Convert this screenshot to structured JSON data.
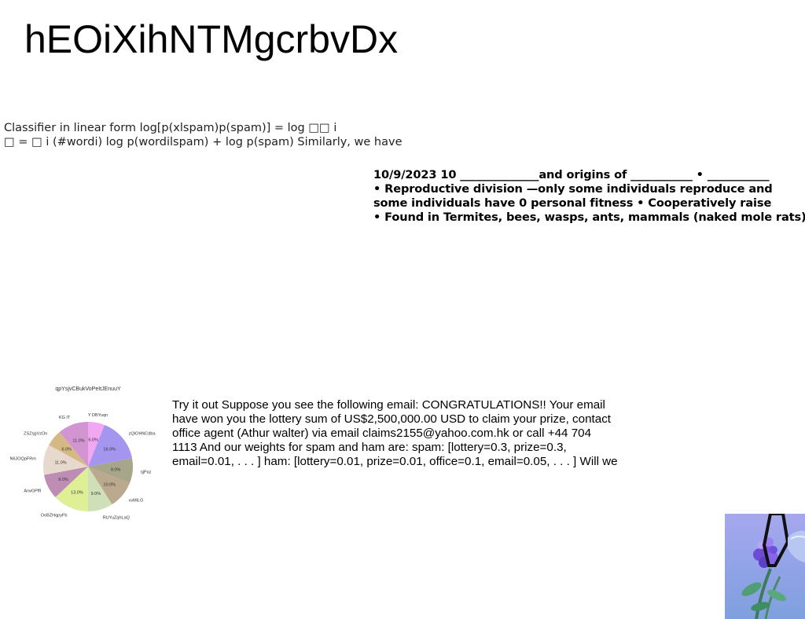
{
  "title": "hEOiXihNTMgcrbvDx",
  "classifier": {
    "lines": [
      "Classifier in linear form log[p(xlspam)p(spam)] = log □□ i",
      "□ = □ i (#wordi) log p(wordilspam) + log p(spam) Similarly, we have"
    ]
  },
  "bio_notes": {
    "lines": [
      "10/9/2023 10 ______________and origins of ___________ • ___________",
      "• Reproductive division —only some individuals reproduce and",
      "some individuals have 0 personal fitness • Cooperatively raise",
      "• Found in Termites, bees, wasps, ants, mammals (naked mole rats)"
    ]
  },
  "spam_example": {
    "lines": [
      "Try it out Suppose you see the following email: CONGRATULATIONS!! Your email",
      "have won you the lottery sum of US$2,500,000.00 USD to claim your prize, contact",
      "office agent (Athur walter) via email claims2155@yahoo.com.hk or call +44 704",
      "1113 And our weights for spam and ham are: spam: [lottery=0.3, prize=0.3,",
      "email=0.01, . . . ] ham: [lottery=0.01, prize=0.01, office=0.1, email=0.05, . . . ] Will we"
    ]
  },
  "chart_data": {
    "type": "pie",
    "title": "qpYsjvCBukVoPeItJEnuuY",
    "slices": [
      {
        "label": "Y DBYuqn",
        "value": 6.0,
        "color": "#f2a7f2"
      },
      {
        "label": "zQIOHNCdba",
        "value": 16.0,
        "color": "#a495ee"
      },
      {
        "label": "rjjPaz",
        "value": 9.0,
        "color": "#a7a58a"
      },
      {
        "label": "vvMiLG",
        "value": 10.0,
        "color": "#bba98f"
      },
      {
        "label": "RUYuZqhLaQ",
        "value": 9.0,
        "color": "#cfdfb7"
      },
      {
        "label": "OoBZHqpyFb",
        "value": 13.0,
        "color": "#deef95"
      },
      {
        "label": "ArwGPffI",
        "value": 9.0,
        "color": "#be8db3"
      },
      {
        "label": "N6JOQpFRm",
        "value": 11.0,
        "color": "#e8d9cf"
      },
      {
        "label": "ZSZrjgVzOn",
        "value": 6.0,
        "color": "#d5b984"
      },
      {
        "label": "KG IT",
        "value": 11.0,
        "color": "#d394d2"
      }
    ]
  }
}
